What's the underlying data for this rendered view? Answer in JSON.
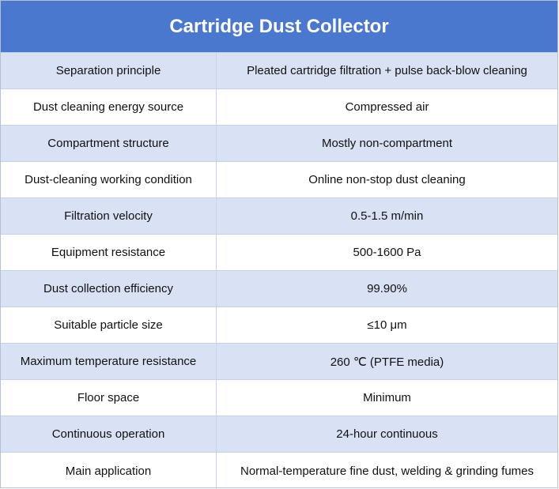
{
  "table": {
    "title": "Cartridge Dust Collector",
    "rows": [
      [
        "Separation principle",
        "Pleated cartridge filtration + pulse back-blow cleaning"
      ],
      [
        "Dust cleaning energy source",
        "Compressed air"
      ],
      [
        "Compartment structure",
        "Mostly non-compartment"
      ],
      [
        "Dust-cleaning working condition",
        "Online non-stop dust cleaning"
      ],
      [
        "Filtration velocity",
        "0.5-1.5 m/min"
      ],
      [
        "Equipment resistance",
        "500-1600 Pa"
      ],
      [
        "Dust collection efficiency",
        "99.90%"
      ],
      [
        "Suitable particle size",
        "≤10 μm"
      ],
      [
        "Maximum temperature resistance",
        "260 ℃ (PTFE media)"
      ],
      [
        "Floor space",
        "Minimum"
      ],
      [
        "Continuous operation",
        "24-hour continuous"
      ],
      [
        "Main application",
        "Normal-temperature fine dust, welding & grinding fumes"
      ]
    ]
  }
}
